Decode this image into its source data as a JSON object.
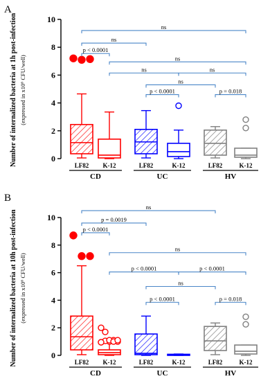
{
  "chart_data": [
    {
      "type": "box",
      "panel": "A",
      "ylabel": "Number of internalized bacteria at 1h post-infection",
      "ylabel_sub": "(expressed in x10⁶ CFU/well)",
      "ylim": [
        0,
        10
      ],
      "yticks": [
        "0",
        "2",
        "4",
        "6",
        "8",
        "10"
      ],
      "categories": [
        "LF82",
        "K-12",
        "LF82",
        "K-12",
        "LF82",
        "K-12"
      ],
      "groups": [
        {
          "label": "CD",
          "from": 0,
          "to": 1
        },
        {
          "label": "UC",
          "from": 2,
          "to": 3
        },
        {
          "label": "HV",
          "from": 4,
          "to": 5
        }
      ],
      "colors": [
        "#ff0000",
        "#ff0000",
        "#0000ff",
        "#0000ff",
        "#808080",
        "#808080"
      ],
      "boxes": [
        {
          "whisker_low": 0.05,
          "q1": 0.35,
          "median": 1.15,
          "q3": 2.45,
          "whisker_high": 4.65,
          "hatched": true,
          "outliers": [
            7.2,
            7.1,
            7.15
          ],
          "outlier_filled": true
        },
        {
          "whisker_low": 0.0,
          "q1": 0.05,
          "median": 0.25,
          "q3": 1.4,
          "whisker_high": 3.35,
          "hatched": false,
          "outliers": [],
          "outlier_filled": true
        },
        {
          "whisker_low": 0.05,
          "q1": 0.35,
          "median": 1.2,
          "q3": 2.1,
          "whisker_high": 3.45,
          "hatched": true,
          "outliers": [],
          "outlier_filled": false
        },
        {
          "whisker_low": 0.0,
          "q1": 0.15,
          "median": 0.5,
          "q3": 1.1,
          "whisker_high": 2.05,
          "hatched": false,
          "outliers": [
            3.8
          ],
          "outlier_filled": false
        },
        {
          "whisker_low": 0.05,
          "q1": 0.25,
          "median": 1.1,
          "q3": 2.05,
          "whisker_high": 2.3,
          "hatched": true,
          "outliers": [],
          "outlier_filled": false
        },
        {
          "whisker_low": 0.0,
          "q1": 0.1,
          "median": 0.25,
          "q3": 0.75,
          "whisker_high": 0.75,
          "hatched": false,
          "outliers": [
            2.8,
            2.2
          ],
          "outlier_filled": false
        }
      ],
      "brackets": [
        {
          "from": 0,
          "to": 5,
          "y": 9.2,
          "label": "ns"
        },
        {
          "from": 0,
          "to": 2,
          "y": 8.3,
          "label": "ns"
        },
        {
          "from": 0,
          "to": 1,
          "y": 7.55,
          "label": "p < 0.0001"
        },
        {
          "from": 1,
          "to": 5,
          "y": 6.95,
          "label": "ns"
        },
        {
          "from": 1,
          "to": 3,
          "y": 6.15,
          "label": "ns"
        },
        {
          "from": 3,
          "to": 5,
          "y": 6.15,
          "label": "ns"
        },
        {
          "from": 2,
          "to": 4,
          "y": 5.3,
          "label": "ns"
        },
        {
          "from": 2,
          "to": 3,
          "y": 4.6,
          "label": "p < 0.0001"
        },
        {
          "from": 4,
          "to": 5,
          "y": 4.6,
          "label": "p = 0.018"
        }
      ]
    },
    {
      "type": "box",
      "panel": "B",
      "ylabel": "Number of internalized bacteria at 10h post-infection",
      "ylabel_sub": "(expressed in x10⁶ CFU/well)",
      "ylim": [
        0,
        10
      ],
      "yticks": [
        "0",
        "2",
        "4",
        "6",
        "8",
        "10"
      ],
      "categories": [
        "LF82",
        "K-12",
        "LF82",
        "K-12",
        "LF82",
        "K-12"
      ],
      "groups": [
        {
          "label": "CD",
          "from": 0,
          "to": 1
        },
        {
          "label": "UC",
          "from": 2,
          "to": 3
        },
        {
          "label": "HV",
          "from": 4,
          "to": 5
        }
      ],
      "colors": [
        "#ff0000",
        "#ff0000",
        "#0000ff",
        "#0000ff",
        "#808080",
        "#808080"
      ],
      "boxes": [
        {
          "whisker_low": 0.05,
          "q1": 0.4,
          "median": 1.35,
          "q3": 2.85,
          "whisker_high": 6.5,
          "hatched": true,
          "outliers": [
            8.7,
            7.2,
            7.2
          ],
          "outlier_filled": true
        },
        {
          "whisker_low": 0.0,
          "q1": 0.05,
          "median": 0.2,
          "q3": 0.4,
          "whisker_high": 0.9,
          "hatched": false,
          "outliers": [
            2.0,
            1.7,
            1.0,
            1.1,
            1.0,
            0.95,
            1.05,
            1.1,
            1.0,
            1.1,
            0.95
          ],
          "outlier_filled": false
        },
        {
          "whisker_low": 0.0,
          "q1": 0.05,
          "median": 0.15,
          "q3": 1.55,
          "whisker_high": 2.85,
          "hatched": true,
          "outliers": [],
          "outlier_filled": false
        },
        {
          "whisker_low": 0.0,
          "q1": 0.0,
          "median": 0.02,
          "q3": 0.08,
          "whisker_high": 0.1,
          "hatched": false,
          "outliers": [],
          "outlier_filled": false
        },
        {
          "whisker_low": 0.05,
          "q1": 0.35,
          "median": 1.05,
          "q3": 2.1,
          "whisker_high": 2.35,
          "hatched": true,
          "outliers": [],
          "outlier_filled": false
        },
        {
          "whisker_low": 0.0,
          "q1": 0.1,
          "median": 0.3,
          "q3": 0.75,
          "whisker_high": 0.75,
          "hatched": false,
          "outliers": [
            2.8,
            2.25
          ],
          "outlier_filled": false
        }
      ],
      "brackets": [
        {
          "from": 0,
          "to": 4,
          "y": 10.5,
          "label": "ns"
        },
        {
          "from": 0,
          "to": 2,
          "y": 9.6,
          "label": "p = 0.0019"
        },
        {
          "from": 0,
          "to": 1,
          "y": 8.9,
          "label": "p < 0.0001"
        },
        {
          "from": 1,
          "to": 5,
          "y": 7.45,
          "label": "ns"
        },
        {
          "from": 1,
          "to": 3,
          "y": 6.05,
          "label": "p < 0.0001"
        },
        {
          "from": 3,
          "to": 5,
          "y": 6.05,
          "label": "p < 0.0001"
        },
        {
          "from": 2,
          "to": 4,
          "y": 5.0,
          "label": "ns"
        },
        {
          "from": 2,
          "to": 3,
          "y": 3.85,
          "label": "p < 0.0001"
        },
        {
          "from": 4,
          "to": 5,
          "y": 3.85,
          "label": "p = 0.018"
        }
      ]
    }
  ]
}
